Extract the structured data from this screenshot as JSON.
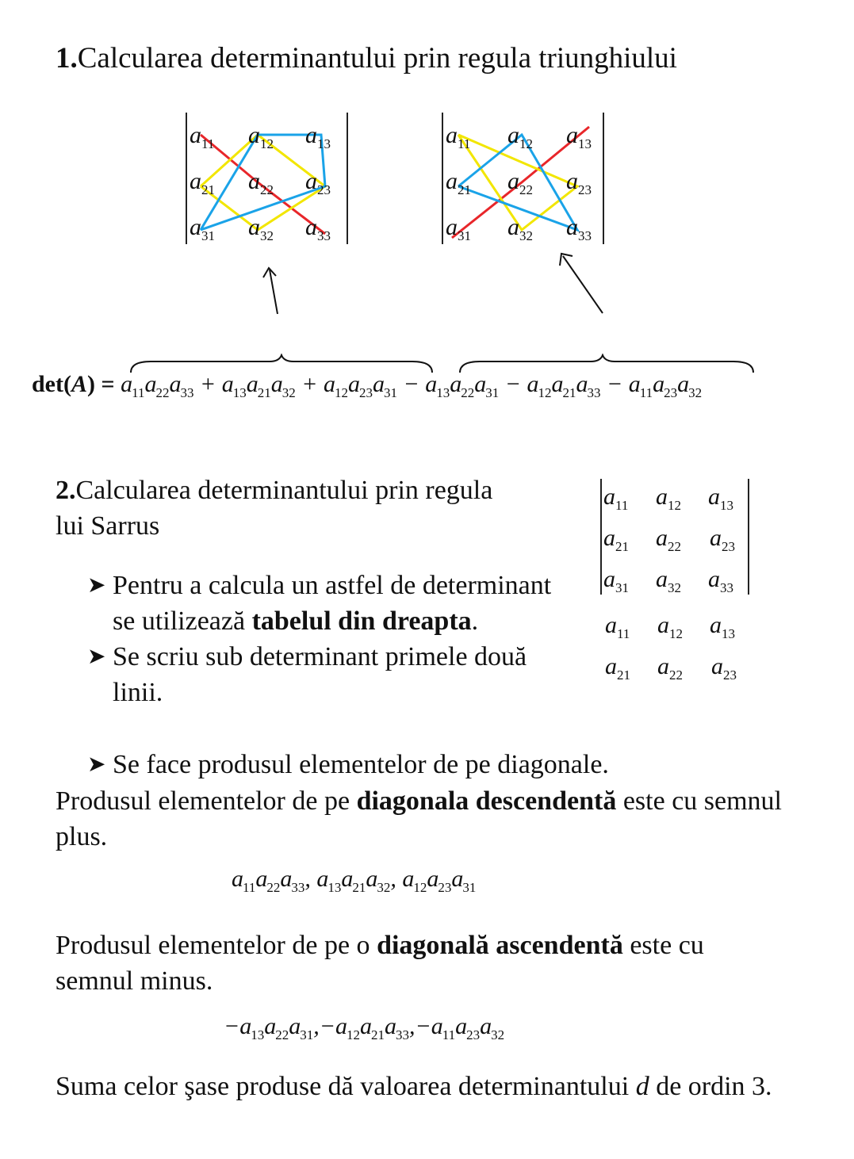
{
  "section1": {
    "number": "1.",
    "title": "Calcularea determinantului prin regula triunghiului"
  },
  "matrix": [
    [
      "a",
      "11",
      "a",
      "12",
      "a",
      "13"
    ]
  ],
  "det_formula": {
    "lhs": "det(A) =",
    "terms": [
      "a11a22a33",
      "+ a13a21a32",
      "+ a12a23a31",
      "− a13a22a31",
      "− a12a21a33",
      "− a11a23a32"
    ]
  },
  "section2": {
    "number": "2.",
    "title_line1": "Calcularea determinantului prin regula",
    "title_line2": "lui Sarrus",
    "bullet1_a": "Pentru a calcula un astfel de determinant se utilizează ",
    "bullet1_bold": "tabelul din dreapta",
    "bullet1_end": ".",
    "bullet2": "Se scriu sub determinant primele două linii.",
    "bullet3": "Se face produsul elementelor de pe diagonale.",
    "para1_a": "Produsul elementelor de pe ",
    "para1_bold": "diagonala descendentă",
    "para1_b": " este cu semnul plus.",
    "plus_products": "a11a22a33, a13a21a32, a12a23a31",
    "para2_a": "Produsul elementelor de pe o ",
    "para2_bold": "diagonală ascendentă",
    "para2_b": " este cu semnul minus.",
    "minus_products": "−a13a22a31,−a12a21a33,−a11a23a32",
    "para3_a": "Suma celor şase produse dă valoarea determinantului ",
    "para3_var": "d",
    "para3_b": " de ordin 3."
  },
  "colors": {
    "red": "#e8262a",
    "yellow": "#f2e600",
    "blue": "#1aa3e8"
  }
}
